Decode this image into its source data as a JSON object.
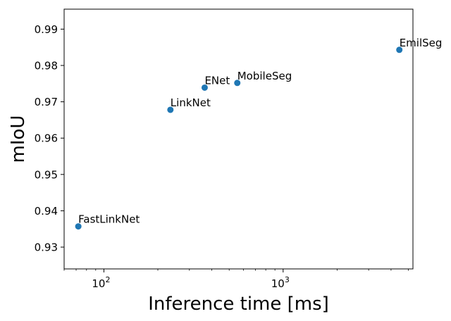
{
  "chart_data": {
    "type": "scatter",
    "title": "",
    "xlabel": "Inference time [ms]",
    "ylabel": "mIoU",
    "xscale": "log",
    "xlim": [
      60,
      5300
    ],
    "ylim": [
      0.924,
      0.9955
    ],
    "grid": false,
    "legend": "none",
    "marker_color": "#1f77b4",
    "y_ticks": [
      "0.93",
      "0.94",
      "0.95",
      "0.96",
      "0.97",
      "0.98",
      "0.99"
    ],
    "x_major_ticks": [
      {
        "value": 100,
        "base": "10",
        "exp": "2"
      },
      {
        "value": 1000,
        "base": "10",
        "exp": "3"
      }
    ],
    "points": [
      {
        "label": "FastLinkNet",
        "x": 72,
        "y": 0.9357
      },
      {
        "label": "LinkNet",
        "x": 235,
        "y": 0.9678
      },
      {
        "label": "ENet",
        "x": 365,
        "y": 0.9739
      },
      {
        "label": "MobileSeg",
        "x": 555,
        "y": 0.9752
      },
      {
        "label": "EmilSeg",
        "x": 4450,
        "y": 0.9843
      }
    ]
  }
}
